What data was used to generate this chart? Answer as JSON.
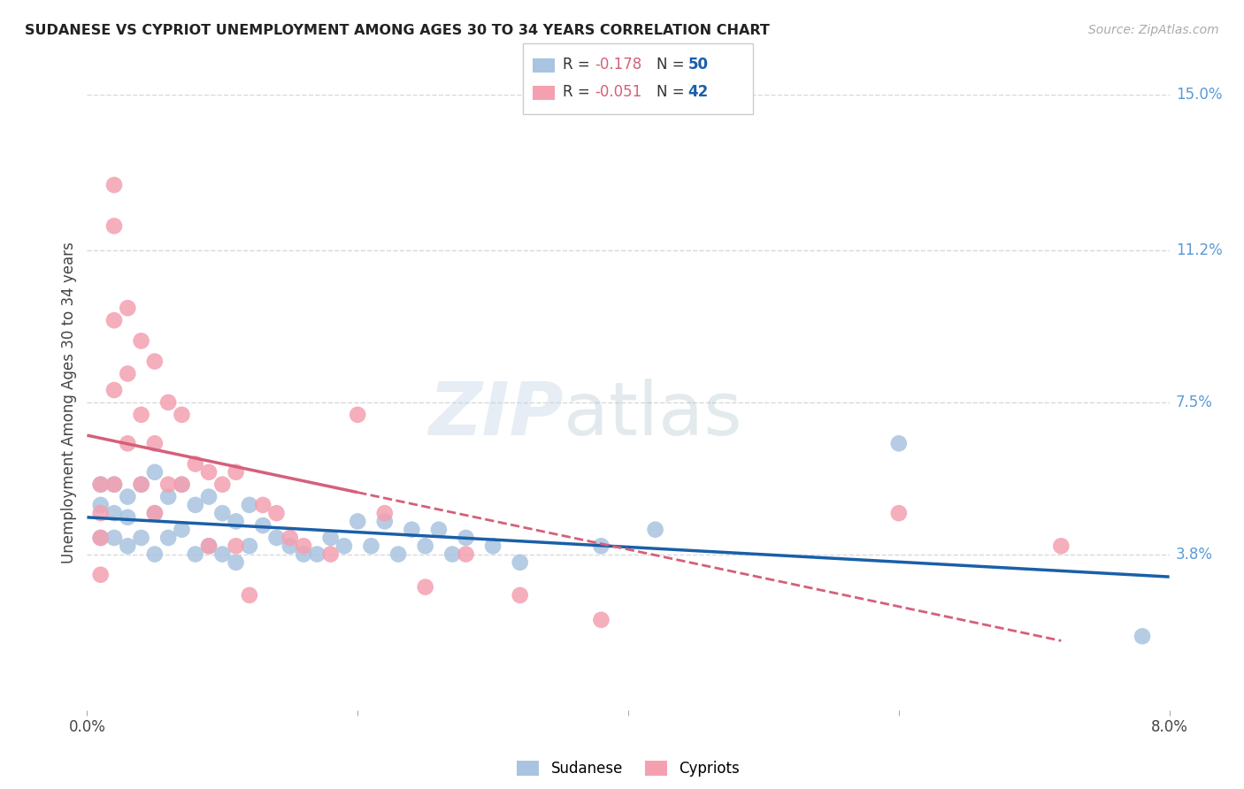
{
  "title": "SUDANESE VS CYPRIOT UNEMPLOYMENT AMONG AGES 30 TO 34 YEARS CORRELATION CHART",
  "source": "Source: ZipAtlas.com",
  "ylabel": "Unemployment Among Ages 30 to 34 years",
  "xlim": [
    0.0,
    0.08
  ],
  "ylim": [
    0.0,
    0.15
  ],
  "xticks": [
    0.0,
    0.02,
    0.04,
    0.06,
    0.08
  ],
  "xticklabels": [
    "0.0%",
    "",
    "",
    "",
    "8.0%"
  ],
  "ytick_labels_right": [
    "15.0%",
    "11.2%",
    "7.5%",
    "3.8%"
  ],
  "ytick_positions_right": [
    0.15,
    0.112,
    0.075,
    0.038
  ],
  "sudanese_color": "#a8c4e0",
  "cypriot_color": "#f4a0b0",
  "sudanese_line_color": "#1a5fa8",
  "cypriot_line_color": "#d4607a",
  "legend_R_sudanese": "-0.178",
  "legend_N_sudanese": "50",
  "legend_R_cypriot": "-0.051",
  "legend_N_cypriot": "42",
  "sudanese_x": [
    0.001,
    0.001,
    0.001,
    0.002,
    0.002,
    0.002,
    0.003,
    0.003,
    0.003,
    0.004,
    0.004,
    0.005,
    0.005,
    0.005,
    0.006,
    0.006,
    0.007,
    0.007,
    0.008,
    0.008,
    0.009,
    0.009,
    0.01,
    0.01,
    0.011,
    0.011,
    0.012,
    0.012,
    0.013,
    0.014,
    0.015,
    0.016,
    0.017,
    0.018,
    0.019,
    0.02,
    0.021,
    0.022,
    0.023,
    0.024,
    0.025,
    0.026,
    0.027,
    0.028,
    0.03,
    0.032,
    0.038,
    0.042,
    0.06,
    0.078
  ],
  "sudanese_y": [
    0.055,
    0.05,
    0.042,
    0.055,
    0.048,
    0.042,
    0.052,
    0.047,
    0.04,
    0.055,
    0.042,
    0.058,
    0.048,
    0.038,
    0.052,
    0.042,
    0.055,
    0.044,
    0.05,
    0.038,
    0.052,
    0.04,
    0.048,
    0.038,
    0.046,
    0.036,
    0.05,
    0.04,
    0.045,
    0.042,
    0.04,
    0.038,
    0.038,
    0.042,
    0.04,
    0.046,
    0.04,
    0.046,
    0.038,
    0.044,
    0.04,
    0.044,
    0.038,
    0.042,
    0.04,
    0.036,
    0.04,
    0.044,
    0.065,
    0.018
  ],
  "cypriot_x": [
    0.001,
    0.001,
    0.001,
    0.001,
    0.002,
    0.002,
    0.002,
    0.002,
    0.002,
    0.003,
    0.003,
    0.003,
    0.004,
    0.004,
    0.004,
    0.005,
    0.005,
    0.005,
    0.006,
    0.006,
    0.007,
    0.007,
    0.008,
    0.009,
    0.009,
    0.01,
    0.011,
    0.011,
    0.012,
    0.013,
    0.014,
    0.015,
    0.016,
    0.018,
    0.02,
    0.022,
    0.025,
    0.028,
    0.032,
    0.038,
    0.06,
    0.072
  ],
  "cypriot_y": [
    0.055,
    0.048,
    0.042,
    0.033,
    0.128,
    0.118,
    0.095,
    0.078,
    0.055,
    0.098,
    0.082,
    0.065,
    0.09,
    0.072,
    0.055,
    0.085,
    0.065,
    0.048,
    0.075,
    0.055,
    0.072,
    0.055,
    0.06,
    0.058,
    0.04,
    0.055,
    0.058,
    0.04,
    0.028,
    0.05,
    0.048,
    0.042,
    0.04,
    0.038,
    0.072,
    0.048,
    0.03,
    0.038,
    0.028,
    0.022,
    0.048,
    0.04
  ],
  "background_color": "#ffffff",
  "grid_color": "#d8d8d8"
}
